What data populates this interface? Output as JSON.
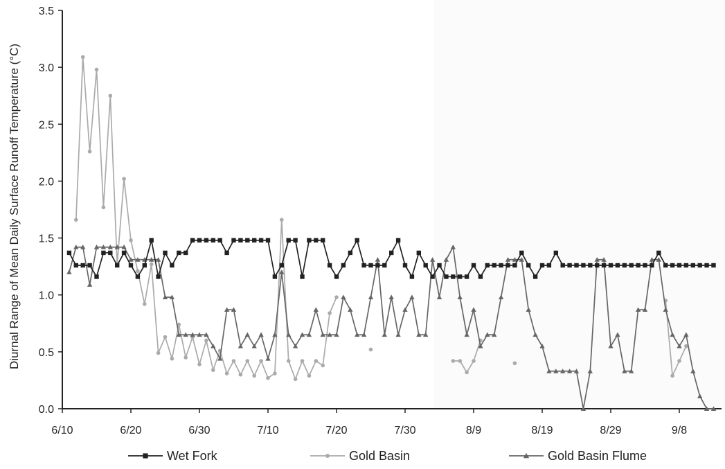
{
  "chart_data": {
    "type": "line",
    "title": "",
    "xlabel": "",
    "ylabel": "Diurnal Range of Mean Daily Surface Runoff Temperature (°C)",
    "ylim": [
      0,
      3.5
    ],
    "yticks": [
      "0.0",
      "0.5",
      "1.0",
      "1.5",
      "2.0",
      "2.5",
      "3.0",
      "3.5"
    ],
    "x_start_date": "6/10",
    "xticks": [
      "6/10",
      "6/20",
      "6/30",
      "7/10",
      "7/20",
      "7/30",
      "8/9",
      "8/19",
      "8/29",
      "9/8"
    ],
    "xlim": [
      "6/10",
      "9/13"
    ],
    "grid": false,
    "legend_position": "bottom",
    "series": [
      {
        "name": "Wet Fork",
        "color": "#222222",
        "marker": "square",
        "x": [
          1,
          2,
          3,
          4,
          5,
          6,
          7,
          8,
          9,
          10,
          11,
          12,
          13,
          14,
          15,
          16,
          17,
          18,
          19,
          20,
          21,
          22,
          23,
          24,
          25,
          26,
          27,
          28,
          29,
          30,
          31,
          32,
          33,
          34,
          35,
          36,
          37,
          38,
          39,
          40,
          41,
          42,
          43,
          44,
          45,
          46,
          47,
          48,
          49,
          50,
          51,
          52,
          53,
          54,
          55,
          56,
          57,
          58,
          59,
          60,
          61,
          62,
          63,
          64,
          65,
          66,
          67,
          68,
          69,
          70,
          71,
          72,
          73,
          74,
          75,
          76,
          77,
          78,
          79,
          80,
          81,
          82,
          83,
          84,
          85,
          86,
          87,
          88,
          89,
          90,
          91,
          92,
          93,
          94,
          95
        ],
        "values": [
          1.37,
          1.26,
          1.26,
          1.26,
          1.16,
          1.37,
          1.37,
          1.26,
          1.37,
          1.26,
          1.16,
          1.26,
          1.48,
          1.16,
          1.37,
          1.26,
          1.37,
          1.37,
          1.48,
          1.48,
          1.48,
          1.48,
          1.48,
          1.37,
          1.48,
          1.48,
          1.48,
          1.48,
          1.48,
          1.48,
          1.16,
          1.26,
          1.48,
          1.48,
          1.16,
          1.48,
          1.48,
          1.48,
          1.26,
          1.16,
          1.26,
          1.37,
          1.48,
          1.26,
          1.26,
          1.26,
          1.26,
          1.37,
          1.48,
          1.26,
          1.16,
          1.37,
          1.26,
          1.16,
          1.26,
          1.16,
          1.16,
          1.16,
          1.16,
          1.26,
          1.16,
          1.26,
          1.26,
          1.26,
          1.26,
          1.26,
          1.37,
          1.26,
          1.16,
          1.26,
          1.26,
          1.37,
          1.26,
          1.26,
          1.26,
          1.26,
          1.26,
          1.26,
          1.26,
          1.26,
          1.26,
          1.26,
          1.26,
          1.26,
          1.26,
          1.26,
          1.37,
          1.26,
          1.26,
          1.26,
          1.26,
          1.26,
          1.26,
          1.26,
          1.26
        ]
      },
      {
        "name": "Gold Basin",
        "color": "#aaaaaa",
        "marker": "circle",
        "x": [
          2,
          3,
          4,
          5,
          6,
          7,
          8,
          9,
          10,
          11,
          12,
          13,
          14,
          15,
          16,
          17,
          18,
          19,
          20,
          21,
          22,
          23,
          24,
          25,
          26,
          27,
          28,
          29,
          30,
          31,
          32,
          33,
          34,
          35,
          36,
          37,
          38,
          39,
          40,
          45,
          57,
          58,
          59,
          60,
          61,
          66,
          88,
          89,
          90,
          91
        ],
        "values": [
          1.66,
          3.09,
          2.26,
          2.98,
          1.77,
          2.75,
          1.27,
          2.02,
          1.48,
          1.21,
          0.92,
          1.27,
          0.49,
          0.63,
          0.44,
          0.74,
          0.45,
          0.63,
          0.39,
          0.6,
          0.34,
          0.51,
          0.31,
          0.42,
          0.3,
          0.42,
          0.29,
          0.42,
          0.27,
          0.31,
          1.66,
          0.42,
          0.26,
          0.42,
          0.29,
          0.42,
          0.38,
          0.84,
          0.98,
          0.52,
          0.42,
          0.42,
          0.32,
          0.42,
          0.6,
          0.4,
          0.95,
          0.29,
          0.42,
          0.55
        ]
      },
      {
        "name": "Gold Basin Flume",
        "color": "#666666",
        "marker": "triangle",
        "x": [
          1,
          2,
          3,
          4,
          5,
          6,
          7,
          8,
          9,
          10,
          11,
          12,
          13,
          14,
          15,
          16,
          17,
          18,
          19,
          20,
          21,
          22,
          23,
          24,
          25,
          26,
          27,
          28,
          29,
          30,
          31,
          32,
          33,
          34,
          35,
          36,
          37,
          38,
          39,
          40,
          41,
          42,
          43,
          44,
          45,
          46,
          47,
          48,
          49,
          50,
          51,
          52,
          53,
          54,
          55,
          56,
          57,
          58,
          59,
          60,
          61,
          62,
          63,
          64,
          65,
          66,
          67,
          68,
          69,
          70,
          71,
          72,
          73,
          74,
          75,
          76,
          77,
          78,
          79,
          80,
          81,
          82,
          83,
          84,
          85,
          86,
          87,
          88,
          89,
          90,
          91,
          92,
          93,
          94,
          95
        ],
        "values": [
          1.2,
          1.42,
          1.42,
          1.09,
          1.42,
          1.42,
          1.42,
          1.42,
          1.42,
          1.31,
          1.31,
          1.31,
          1.31,
          1.31,
          0.98,
          0.98,
          0.65,
          0.65,
          0.65,
          0.65,
          0.65,
          0.55,
          0.44,
          0.87,
          0.87,
          0.55,
          0.65,
          0.55,
          0.65,
          0.44,
          0.65,
          1.2,
          0.65,
          0.55,
          0.65,
          0.65,
          0.87,
          0.65,
          0.65,
          0.65,
          0.98,
          0.87,
          0.65,
          0.65,
          0.98,
          1.31,
          0.65,
          0.98,
          0.65,
          0.87,
          0.98,
          0.65,
          0.65,
          1.31,
          0.98,
          1.31,
          1.42,
          0.98,
          0.65,
          0.87,
          0.55,
          0.65,
          0.65,
          0.98,
          1.31,
          1.31,
          1.31,
          0.87,
          0.65,
          0.55,
          0.33,
          0.33,
          0.33,
          0.33,
          0.33,
          0.0,
          0.33,
          1.31,
          1.31,
          0.55,
          0.65,
          0.33,
          0.33,
          0.87,
          0.87,
          1.31,
          1.31,
          0.87,
          0.65,
          0.55,
          0.65,
          0.33,
          0.11,
          0.0,
          0.0
        ]
      }
    ]
  }
}
